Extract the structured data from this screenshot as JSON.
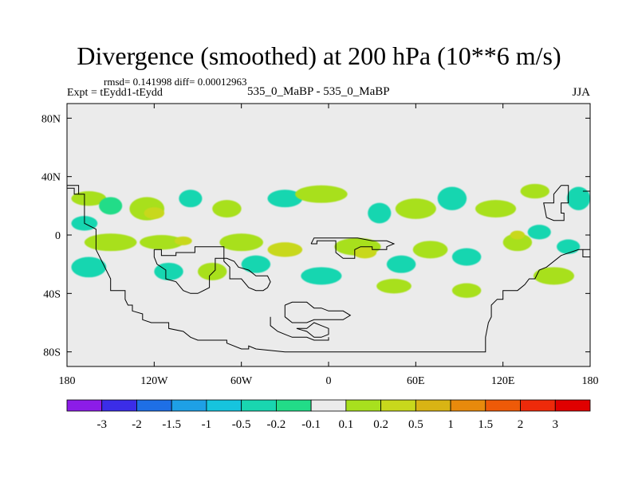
{
  "chart_data": {
    "type": "contour-map",
    "title": "Divergence (smoothed) at 200 hPa (10**6 m/s)",
    "stats_text": "rmsd= 0.141998 diff= 0.00012963",
    "experiment_text": "Expt = tEydd1-tEydd",
    "subtitle": "535_0_MaBP - 535_0_MaBP",
    "season": "JJA",
    "x_axis": {
      "range": [
        -180,
        180
      ],
      "ticks": [
        -180,
        -120,
        -60,
        0,
        60,
        120,
        180
      ],
      "tick_labels": [
        "180",
        "120W",
        "60W",
        "0",
        "60E",
        "120E",
        "180"
      ]
    },
    "y_axis": {
      "range": [
        -90,
        90
      ],
      "ticks": [
        -80,
        -40,
        0,
        40,
        80
      ],
      "tick_labels": [
        "80S",
        "40S",
        "0",
        "40N",
        "80N"
      ]
    },
    "colorbar": {
      "labels": [
        "-3",
        "-2",
        "-1.5",
        "-1",
        "-0.5",
        "-0.2",
        "-0.1",
        "0.1",
        "0.2",
        "0.5",
        "1",
        "1.5",
        "2",
        "3"
      ],
      "colors": [
        "#8c1ce8",
        "#3b2de8",
        "#1e6fe6",
        "#1ea0e6",
        "#16c4de",
        "#19d6b0",
        "#22dc88",
        "#ebebeb",
        "#a8e01e",
        "#c8d81c",
        "#d9b414",
        "#e88a0c",
        "#ee5a08",
        "#ee2a0a",
        "#e00000"
      ]
    },
    "fields": [
      {
        "level": "-0.2",
        "color": "#19d6b0",
        "lon": -168,
        "lat": 8,
        "rlon": 9,
        "rlat": 5
      },
      {
        "level": "0.2",
        "color": "#a8e01e",
        "lon": -165,
        "lat": 25,
        "rlon": 12,
        "rlat": 5
      },
      {
        "level": "-0.1",
        "color": "#22dc88",
        "lon": -150,
        "lat": 20,
        "rlon": 8,
        "rlat": 6
      },
      {
        "level": "0.2",
        "color": "#a8e01e",
        "lon": -125,
        "lat": 18,
        "rlon": 12,
        "rlat": 8
      },
      {
        "level": "0.5",
        "color": "#c8d81c",
        "lon": -120,
        "lat": 15,
        "rlon": 7,
        "rlat": 4
      },
      {
        "level": "-0.2",
        "color": "#19d6b0",
        "lon": -95,
        "lat": 25,
        "rlon": 8,
        "rlat": 6
      },
      {
        "level": "0.2",
        "color": "#a8e01e",
        "lon": -70,
        "lat": 18,
        "rlon": 10,
        "rlat": 6
      },
      {
        "level": "-0.2",
        "color": "#19d6b0",
        "lon": -30,
        "lat": 25,
        "rlon": 12,
        "rlat": 6
      },
      {
        "level": "0.2",
        "color": "#a8e01e",
        "lon": -5,
        "lat": 28,
        "rlon": 18,
        "rlat": 6
      },
      {
        "level": "-0.2",
        "color": "#19d6b0",
        "lon": 35,
        "lat": 15,
        "rlon": 8,
        "rlat": 7
      },
      {
        "level": "0.2",
        "color": "#a8e01e",
        "lon": 60,
        "lat": 18,
        "rlon": 14,
        "rlat": 7
      },
      {
        "level": "-0.2",
        "color": "#19d6b0",
        "lon": 85,
        "lat": 25,
        "rlon": 10,
        "rlat": 8
      },
      {
        "level": "0.2",
        "color": "#a8e01e",
        "lon": 115,
        "lat": 18,
        "rlon": 14,
        "rlat": 6
      },
      {
        "level": "0.2",
        "color": "#a8e01e",
        "lon": 142,
        "lat": 30,
        "rlon": 10,
        "rlat": 5
      },
      {
        "level": "-0.2",
        "color": "#19d6b0",
        "lon": 172,
        "lat": 25,
        "rlon": 8,
        "rlat": 8
      },
      {
        "level": "0.2",
        "color": "#a8e01e",
        "lon": -150,
        "lat": -5,
        "rlon": 18,
        "rlat": 6
      },
      {
        "level": "-0.2",
        "color": "#19d6b0",
        "lon": -165,
        "lat": -22,
        "rlon": 12,
        "rlat": 7
      },
      {
        "level": "0.2",
        "color": "#a8e01e",
        "lon": -115,
        "lat": -5,
        "rlon": 15,
        "rlat": 5
      },
      {
        "level": "0.5",
        "color": "#c8d81c",
        "lon": -100,
        "lat": -4,
        "rlon": 6,
        "rlat": 3
      },
      {
        "level": "-0.2",
        "color": "#19d6b0",
        "lon": -110,
        "lat": -25,
        "rlon": 10,
        "rlat": 6
      },
      {
        "level": "0.2",
        "color": "#a8e01e",
        "lon": -60,
        "lat": -5,
        "rlon": 15,
        "rlat": 6
      },
      {
        "level": "-0.2",
        "color": "#19d6b0",
        "lon": -50,
        "lat": -20,
        "rlon": 10,
        "rlat": 6
      },
      {
        "level": "0.2",
        "color": "#a8e01e",
        "lon": -80,
        "lat": -25,
        "rlon": 10,
        "rlat": 6
      },
      {
        "level": "0.5",
        "color": "#c8d81c",
        "lon": -30,
        "lat": -10,
        "rlon": 12,
        "rlat": 5
      },
      {
        "level": "-0.2",
        "color": "#19d6b0",
        "lon": -5,
        "lat": -28,
        "rlon": 14,
        "rlat": 6
      },
      {
        "level": "0.2",
        "color": "#a8e01e",
        "lon": 20,
        "lat": -8,
        "rlon": 16,
        "rlat": 6
      },
      {
        "level": "0.5",
        "color": "#c8d81c",
        "lon": 25,
        "lat": -12,
        "rlon": 8,
        "rlat": 4
      },
      {
        "level": "-0.2",
        "color": "#19d6b0",
        "lon": 50,
        "lat": -20,
        "rlon": 10,
        "rlat": 6
      },
      {
        "level": "0.2",
        "color": "#a8e01e",
        "lon": 70,
        "lat": -10,
        "rlon": 12,
        "rlat": 6
      },
      {
        "level": "0.2",
        "color": "#a8e01e",
        "lon": 45,
        "lat": -35,
        "rlon": 12,
        "rlat": 5
      },
      {
        "level": "-0.2",
        "color": "#19d6b0",
        "lon": 95,
        "lat": -15,
        "rlon": 10,
        "rlat": 6
      },
      {
        "level": "0.2",
        "color": "#a8e01e",
        "lon": 95,
        "lat": -38,
        "rlon": 10,
        "rlat": 5
      },
      {
        "level": "0.2",
        "color": "#a8e01e",
        "lon": 130,
        "lat": -5,
        "rlon": 10,
        "rlat": 6
      },
      {
        "level": "0.5",
        "color": "#c8d81c",
        "lon": 130,
        "lat": 0,
        "rlon": 5,
        "rlat": 3
      },
      {
        "level": "-0.2",
        "color": "#19d6b0",
        "lon": 145,
        "lat": 2,
        "rlon": 8,
        "rlat": 5
      },
      {
        "level": "0.2",
        "color": "#a8e01e",
        "lon": 155,
        "lat": -28,
        "rlon": 14,
        "rlat": 6
      },
      {
        "level": "-0.2",
        "color": "#19d6b0",
        "lon": 165,
        "lat": -8,
        "rlon": 8,
        "rlat": 5
      }
    ],
    "coastlines": [
      [
        [
          -180,
          32
        ],
        [
          -175,
          32
        ],
        [
          -175,
          28
        ],
        [
          -168,
          28
        ],
        [
          -168,
          8
        ],
        [
          -160,
          4
        ],
        [
          -160,
          -10
        ],
        [
          -155,
          -20
        ],
        [
          -150,
          -30
        ],
        [
          -150,
          -38
        ],
        [
          -140,
          -38
        ],
        [
          -140,
          -44
        ],
        [
          -138,
          -48
        ],
        [
          -135,
          -48
        ],
        [
          -135,
          -52
        ],
        [
          -128,
          -54
        ],
        [
          -128,
          -58
        ],
        [
          -122,
          -60
        ],
        [
          -110,
          -60
        ],
        [
          -110,
          -64
        ],
        [
          -100,
          -66
        ],
        [
          -95,
          -70
        ],
        [
          -90,
          -72
        ],
        [
          -80,
          -72
        ],
        [
          -70,
          -72
        ],
        [
          -70,
          -74
        ],
        [
          -60,
          -78
        ],
        [
          -55,
          -78
        ],
        [
          -55,
          -76
        ],
        [
          -50,
          -78
        ],
        [
          -30,
          -80
        ],
        [
          0,
          -80
        ],
        [
          20,
          -80
        ],
        [
          60,
          -80
        ],
        [
          100,
          -80
        ],
        [
          108,
          -80
        ],
        [
          108,
          -70
        ],
        [
          110,
          -60
        ],
        [
          112,
          -56
        ],
        [
          112,
          -48
        ],
        [
          116,
          -44
        ],
        [
          120,
          -44
        ],
        [
          120,
          -38
        ],
        [
          130,
          -38
        ],
        [
          135,
          -34
        ],
        [
          138,
          -30
        ],
        [
          142,
          -30
        ],
        [
          145,
          -24
        ],
        [
          150,
          -22
        ],
        [
          160,
          -14
        ],
        [
          172,
          -10
        ],
        [
          180,
          -10
        ]
      ],
      [
        [
          -120,
          -10
        ],
        [
          -115,
          -10
        ],
        [
          -115,
          -14
        ],
        [
          -105,
          -14
        ],
        [
          -105,
          -12
        ],
        [
          -92,
          -12
        ],
        [
          -92,
          -8
        ],
        [
          -82,
          -8
        ],
        [
          -72,
          -8
        ],
        [
          -72,
          -18
        ],
        [
          -68,
          -22
        ],
        [
          -68,
          -30
        ],
        [
          -60,
          -30
        ],
        [
          -55,
          -36
        ],
        [
          -50,
          -38
        ],
        [
          -45,
          -38
        ],
        [
          -42,
          -36
        ],
        [
          -40,
          -32
        ],
        [
          -42,
          -28
        ],
        [
          -50,
          -28
        ],
        [
          -55,
          -24
        ],
        [
          -62,
          -22
        ],
        [
          -65,
          -18
        ],
        [
          -70,
          -16
        ],
        [
          -78,
          -16
        ],
        [
          -78,
          -24
        ],
        [
          -82,
          -28
        ],
        [
          -82,
          -36
        ],
        [
          -90,
          -40
        ],
        [
          -95,
          -40
        ],
        [
          -100,
          -38
        ],
        [
          -105,
          -32
        ],
        [
          -112,
          -30
        ],
        [
          -112,
          -24
        ],
        [
          -118,
          -20
        ],
        [
          -120,
          -15
        ],
        [
          -120,
          -10
        ]
      ],
      [
        [
          -12,
          -6
        ],
        [
          -8,
          -6
        ],
        [
          -8,
          -4
        ],
        [
          0,
          -4
        ],
        [
          5,
          -4
        ],
        [
          5,
          -12
        ],
        [
          10,
          -16
        ],
        [
          18,
          -16
        ],
        [
          18,
          -10
        ],
        [
          22,
          -8
        ],
        [
          30,
          -8
        ],
        [
          30,
          -10
        ],
        [
          40,
          -10
        ],
        [
          40,
          -8
        ],
        [
          45,
          -6
        ],
        [
          40,
          -4
        ],
        [
          30,
          -4
        ],
        [
          20,
          -2
        ],
        [
          10,
          -2
        ],
        [
          0,
          -2
        ],
        [
          -10,
          -2
        ],
        [
          -12,
          -6
        ]
      ],
      [
        [
          -30,
          -48
        ],
        [
          -25,
          -46
        ],
        [
          -15,
          -46
        ],
        [
          -10,
          -50
        ],
        [
          -5,
          -50
        ],
        [
          0,
          -52
        ],
        [
          10,
          -52
        ],
        [
          15,
          -55
        ],
        [
          10,
          -58
        ],
        [
          0,
          -58
        ],
        [
          -10,
          -58
        ],
        [
          -15,
          -60
        ],
        [
          -25,
          -60
        ],
        [
          -30,
          -56
        ],
        [
          -30,
          -48
        ]
      ],
      [
        [
          -22,
          -64
        ],
        [
          -15,
          -64
        ],
        [
          -10,
          -60
        ],
        [
          -5,
          -62
        ],
        [
          0,
          -64
        ],
        [
          0,
          -68
        ],
        [
          -5,
          -70
        ],
        [
          -10,
          -70
        ],
        [
          -15,
          -66
        ],
        [
          -22,
          -64
        ]
      ],
      [
        [
          -40,
          -56
        ],
        [
          -40,
          -62
        ],
        [
          -35,
          -66
        ],
        [
          -30,
          -68
        ],
        [
          -25,
          -70
        ],
        [
          -15,
          -70
        ],
        [
          -10,
          -72
        ],
        [
          0,
          -72
        ],
        [
          0,
          -70
        ]
      ],
      [
        [
          -180,
          34
        ],
        [
          -172,
          34
        ],
        [
          -172,
          28
        ]
      ],
      [
        [
          160,
          34
        ],
        [
          165,
          34
        ],
        [
          165,
          22
        ],
        [
          160,
          22
        ],
        [
          160,
          15
        ],
        [
          162,
          15
        ],
        [
          162,
          10
        ],
        [
          155,
          10
        ],
        [
          150,
          12
        ],
        [
          148,
          22
        ],
        [
          155,
          22
        ],
        [
          155,
          28
        ],
        [
          160,
          34
        ]
      ],
      [
        [
          175,
          30
        ],
        [
          180,
          30
        ]
      ],
      [
        [
          175,
          -10
        ],
        [
          175,
          -15
        ],
        [
          180,
          -15
        ]
      ]
    ]
  }
}
